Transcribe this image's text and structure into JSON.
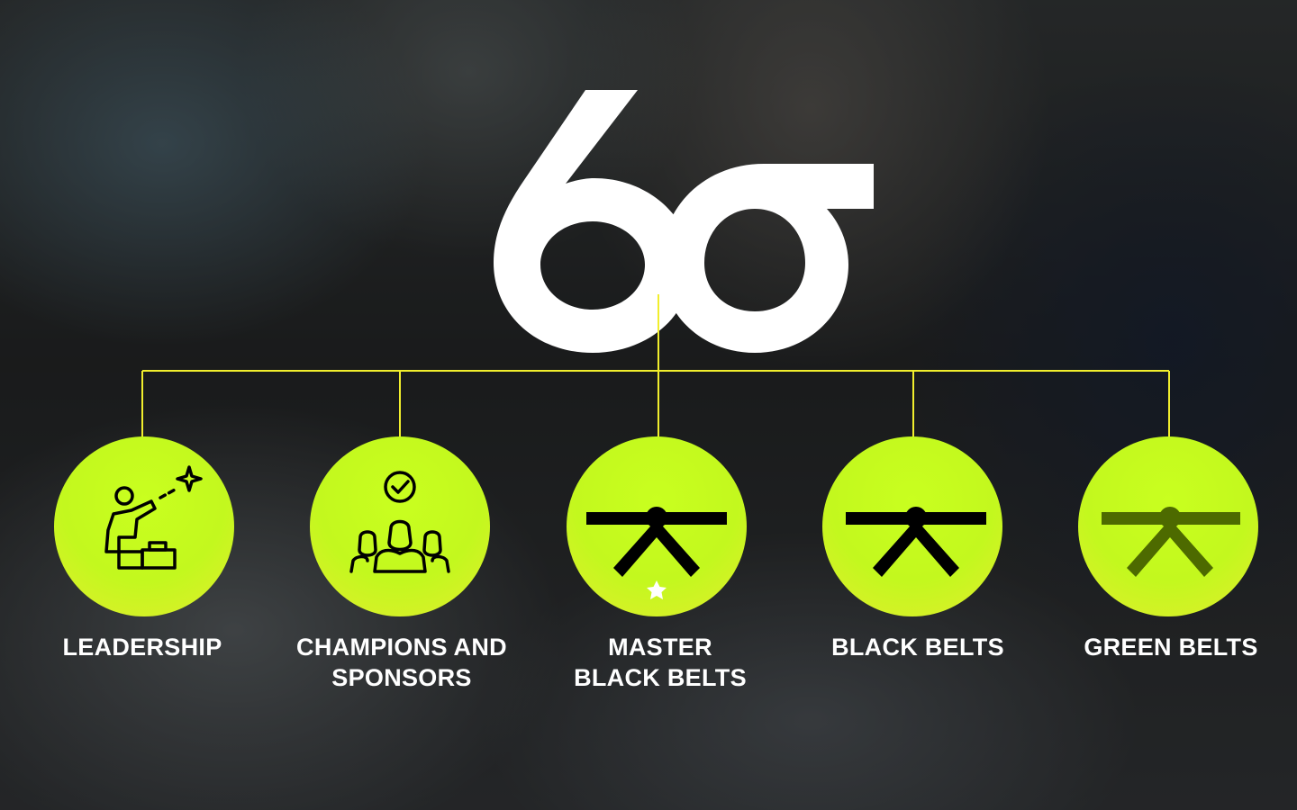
{
  "logo": {
    "text": "6σ",
    "color": "#ffffff"
  },
  "colors": {
    "accent": "#c5fa1e",
    "connector": "#f1ee2d",
    "icon": "#000000",
    "green_belt_icon": "#4d6a00"
  },
  "roles": [
    {
      "label_line1": "LEADERSHIP",
      "label_line2": "",
      "icon": "leader-pointing-star-icon"
    },
    {
      "label_line1": "CHAMPIONS AND",
      "label_line2": "SPONSORS",
      "icon": "team-check-icon"
    },
    {
      "label_line1": "MASTER",
      "label_line2": "BLACK BELTS",
      "icon": "black-belt-star-icon"
    },
    {
      "label_line1": "BLACK BELTS",
      "label_line2": "",
      "icon": "black-belt-icon"
    },
    {
      "label_line1": "GREEN BELTS",
      "label_line2": "",
      "icon": "green-belt-icon"
    }
  ]
}
